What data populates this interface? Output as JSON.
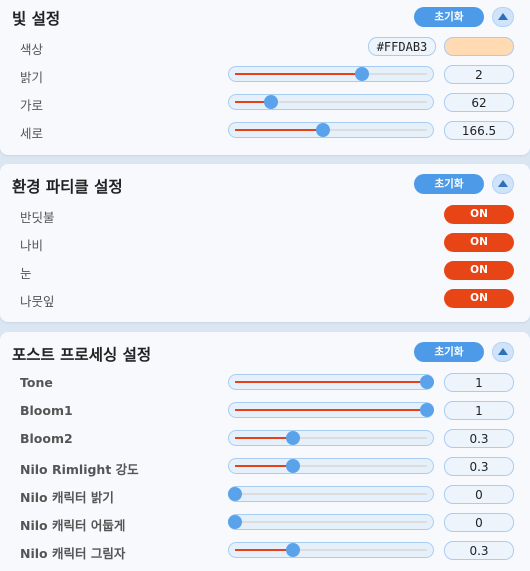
{
  "light_settings": {
    "title": "빛 설정",
    "reset_label": "초기화",
    "color": {
      "label": "색상",
      "hex": "#FFDAB3",
      "swatch": "#FFDAB3"
    },
    "rows": [
      {
        "label": "밝기",
        "value": "2",
        "fraction": 0.66
      },
      {
        "label": "가로",
        "value": "62",
        "fraction": 0.19
      },
      {
        "label": "세로",
        "value": "166.5",
        "fraction": 0.46
      }
    ]
  },
  "particle_settings": {
    "title": "환경 파티클 설정",
    "reset_label": "초기화",
    "toggles": [
      {
        "label": "반딧불",
        "state": "ON"
      },
      {
        "label": "나비",
        "state": "ON"
      },
      {
        "label": "눈",
        "state": "ON"
      },
      {
        "label": "나뭇잎",
        "state": "ON"
      }
    ]
  },
  "post_processing": {
    "title": "포스트 프로세싱 설정",
    "reset_label": "초기화",
    "rows": [
      {
        "label": "Tone",
        "value": "1",
        "fraction": 1.0
      },
      {
        "label": "Bloom1",
        "value": "1",
        "fraction": 1.0
      },
      {
        "label": "Bloom2",
        "value": "0.3",
        "fraction": 0.3
      },
      {
        "label": "Nilo Rimlight 강도",
        "value": "0.3",
        "fraction": 0.3
      },
      {
        "label": "Nilo 캐릭터 밝기",
        "value": "0",
        "fraction": 0.0
      },
      {
        "label": "Nilo 캐릭터 어둡게",
        "value": "0",
        "fraction": 0.0
      },
      {
        "label": "Nilo 캐릭터 그림자",
        "value": "0.3",
        "fraction": 0.3
      }
    ]
  },
  "colors": {
    "accent": "#4d9ae8",
    "slider_fill": "#e8411a",
    "toggle_on": "#e84516"
  },
  "icons": {
    "collapse": "chevron-up-icon"
  }
}
